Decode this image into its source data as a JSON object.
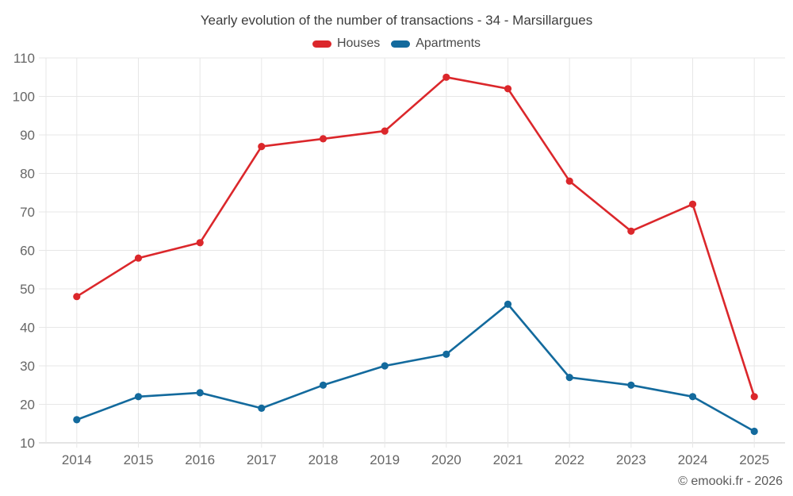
{
  "title": "Yearly evolution of the number of transactions - 34 - Marsillargues",
  "footer": "© emooki.fr - 2026",
  "colors": {
    "houses": "#db272b",
    "apartments": "#136a9d",
    "grid": "#e7e7e7",
    "axis_line": "#c9c9c9",
    "tick_text": "#666666"
  },
  "legend": {
    "items": [
      {
        "label": "Houses",
        "color_key": "houses"
      },
      {
        "label": "Apartments",
        "color_key": "apartments"
      }
    ]
  },
  "chart_data": {
    "type": "line",
    "title": "Yearly evolution of the number of transactions - 34 - Marsillargues",
    "categories": [
      "2014",
      "2015",
      "2016",
      "2017",
      "2018",
      "2019",
      "2020",
      "2021",
      "2022",
      "2023",
      "2024",
      "2025"
    ],
    "series": [
      {
        "name": "Houses",
        "color_key": "houses",
        "values": [
          48,
          58,
          62,
          87,
          89,
          91,
          105,
          102,
          78,
          65,
          72,
          22
        ]
      },
      {
        "name": "Apartments",
        "color_key": "apartments",
        "values": [
          16,
          22,
          23,
          19,
          25,
          30,
          33,
          46,
          27,
          25,
          22,
          13
        ]
      }
    ],
    "xlabel": "",
    "ylabel": "",
    "ylim": [
      10,
      110
    ],
    "y_ticks": [
      10,
      20,
      30,
      40,
      50,
      60,
      70,
      80,
      90,
      100,
      110
    ],
    "grid": true,
    "legend_position": "top",
    "annotations": [
      "© emooki.fr - 2026"
    ]
  }
}
